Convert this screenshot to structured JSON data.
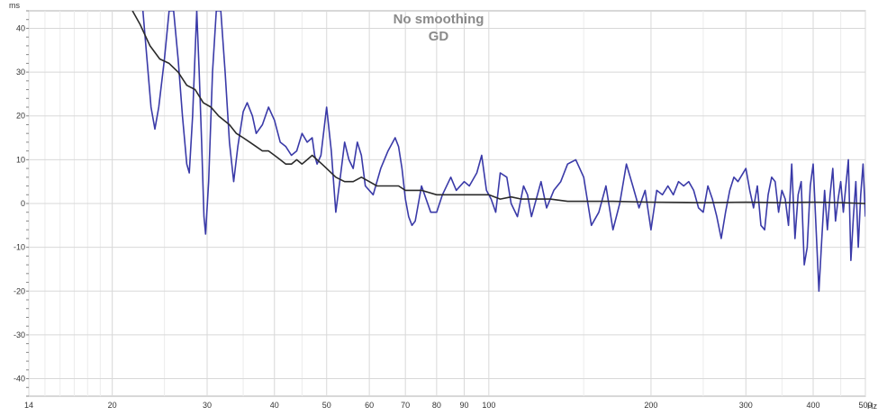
{
  "chart_data": {
    "type": "line",
    "title": "No smoothing",
    "subtitle": "GD",
    "ylabel": "ms",
    "xunit": "Hz",
    "xscale": "log",
    "xlim": [
      14,
      500
    ],
    "ylim": [
      -44,
      44
    ],
    "grid": true,
    "xticks": [
      14,
      20,
      30,
      40,
      50,
      60,
      70,
      80,
      90,
      100,
      200,
      300,
      400,
      500
    ],
    "xminorticks": [
      15,
      16,
      17,
      18,
      19,
      25,
      35,
      45,
      150,
      250,
      350,
      450
    ],
    "yticks": [
      -40,
      -30,
      -20,
      -10,
      0,
      10,
      20,
      30,
      40
    ],
    "colors": {
      "series_blue": "#3a3aa8",
      "series_dark": "#2a2a2a",
      "title": "#8a8a8a",
      "grid": "#d8d8d8"
    },
    "series": [
      {
        "points": [
          [
            22.8,
            44
          ],
          [
            23.2,
            33
          ],
          [
            23.6,
            22
          ],
          [
            24,
            17
          ],
          [
            24.4,
            22
          ],
          [
            25,
            33
          ],
          [
            25.5,
            44
          ],
          [
            26,
            44
          ],
          [
            26.5,
            33
          ],
          [
            27,
            20
          ],
          [
            27.5,
            9
          ],
          [
            27.8,
            7
          ],
          [
            28.2,
            20
          ],
          [
            28.7,
            44
          ],
          [
            29,
            30
          ],
          [
            29.3,
            14
          ],
          [
            29.6,
            -3
          ],
          [
            29.8,
            -7
          ],
          [
            30.2,
            5
          ],
          [
            30.7,
            30
          ],
          [
            31.2,
            44
          ],
          [
            31.8,
            44
          ],
          [
            32.4,
            30
          ],
          [
            33,
            14
          ],
          [
            33.6,
            5
          ],
          [
            34.2,
            13
          ],
          [
            35,
            21
          ],
          [
            35.6,
            23
          ],
          [
            36.4,
            20
          ],
          [
            37,
            16
          ],
          [
            38,
            18
          ],
          [
            39,
            22
          ],
          [
            40,
            19
          ],
          [
            41,
            14
          ],
          [
            42,
            13
          ],
          [
            43,
            11
          ],
          [
            44,
            12
          ],
          [
            45,
            16
          ],
          [
            46,
            14
          ],
          [
            47,
            15
          ],
          [
            47.5,
            11
          ],
          [
            48,
            9
          ],
          [
            48.8,
            11
          ],
          [
            50,
            22
          ],
          [
            51,
            12
          ],
          [
            52,
            -2
          ],
          [
            53,
            6
          ],
          [
            54,
            14
          ],
          [
            55,
            10
          ],
          [
            56,
            8
          ],
          [
            57,
            14
          ],
          [
            58,
            11
          ],
          [
            59,
            4
          ],
          [
            61,
            2
          ],
          [
            63,
            8
          ],
          [
            65,
            12
          ],
          [
            67,
            15
          ],
          [
            68,
            13
          ],
          [
            69,
            8
          ],
          [
            70,
            1
          ],
          [
            71,
            -3
          ],
          [
            72,
            -5
          ],
          [
            73,
            -4
          ],
          [
            75,
            4
          ],
          [
            76,
            2
          ],
          [
            78,
            -2
          ],
          [
            80,
            -2
          ],
          [
            82,
            2
          ],
          [
            85,
            6
          ],
          [
            87,
            3
          ],
          [
            90,
            5
          ],
          [
            92,
            4
          ],
          [
            95,
            7
          ],
          [
            97,
            11
          ],
          [
            99,
            3
          ],
          [
            101,
            1
          ],
          [
            103,
            -2
          ],
          [
            105,
            7
          ],
          [
            108,
            6
          ],
          [
            110,
            0
          ],
          [
            113,
            -3
          ],
          [
            116,
            4
          ],
          [
            118,
            2
          ],
          [
            120,
            -3
          ],
          [
            125,
            5
          ],
          [
            128,
            -1
          ],
          [
            132,
            3
          ],
          [
            136,
            5
          ],
          [
            140,
            9
          ],
          [
            145,
            10
          ],
          [
            150,
            6
          ],
          [
            155,
            -5
          ],
          [
            160,
            -2
          ],
          [
            165,
            4
          ],
          [
            170,
            -6
          ],
          [
            175,
            0
          ],
          [
            180,
            9
          ],
          [
            185,
            4
          ],
          [
            190,
            -1
          ],
          [
            195,
            3
          ],
          [
            200,
            -6
          ],
          [
            205,
            3
          ],
          [
            210,
            2
          ],
          [
            215,
            4
          ],
          [
            220,
            2
          ],
          [
            225,
            5
          ],
          [
            230,
            4
          ],
          [
            235,
            5
          ],
          [
            240,
            3
          ],
          [
            245,
            -1
          ],
          [
            250,
            -2
          ],
          [
            255,
            4
          ],
          [
            260,
            1
          ],
          [
            265,
            -3
          ],
          [
            270,
            -8
          ],
          [
            275,
            -2
          ],
          [
            280,
            3
          ],
          [
            285,
            6
          ],
          [
            290,
            5
          ],
          [
            300,
            8
          ],
          [
            305,
            3
          ],
          [
            310,
            -1
          ],
          [
            315,
            4
          ],
          [
            320,
            -5
          ],
          [
            325,
            -6
          ],
          [
            330,
            2
          ],
          [
            335,
            6
          ],
          [
            340,
            5
          ],
          [
            345,
            -2
          ],
          [
            350,
            3
          ],
          [
            355,
            1
          ],
          [
            360,
            -5
          ],
          [
            365,
            9
          ],
          [
            370,
            -8
          ],
          [
            375,
            2
          ],
          [
            380,
            5
          ],
          [
            385,
            -14
          ],
          [
            390,
            -10
          ],
          [
            395,
            4
          ],
          [
            400,
            9
          ],
          [
            405,
            -6
          ],
          [
            410,
            -20
          ],
          [
            415,
            -8
          ],
          [
            420,
            3
          ],
          [
            425,
            -6
          ],
          [
            430,
            2
          ],
          [
            435,
            8
          ],
          [
            440,
            -4
          ],
          [
            445,
            1
          ],
          [
            450,
            5
          ],
          [
            455,
            -2
          ],
          [
            460,
            4
          ],
          [
            465,
            10
          ],
          [
            470,
            -13
          ],
          [
            475,
            -3
          ],
          [
            480,
            5
          ],
          [
            485,
            -10
          ],
          [
            490,
            2
          ],
          [
            495,
            9
          ],
          [
            500,
            -3
          ]
        ]
      },
      {
        "points": [
          [
            21.8,
            44
          ],
          [
            22.5,
            41
          ],
          [
            23.5,
            36
          ],
          [
            24.5,
            33
          ],
          [
            25.5,
            32
          ],
          [
            26.5,
            30
          ],
          [
            27.5,
            27
          ],
          [
            28.5,
            26
          ],
          [
            29.5,
            23
          ],
          [
            30.5,
            22
          ],
          [
            31.5,
            20
          ],
          [
            33,
            18
          ],
          [
            34,
            16
          ],
          [
            35,
            15
          ],
          [
            36,
            14
          ],
          [
            37,
            13
          ],
          [
            38,
            12
          ],
          [
            39,
            12
          ],
          [
            40,
            11
          ],
          [
            41,
            10
          ],
          [
            42,
            9
          ],
          [
            43,
            9
          ],
          [
            44,
            10
          ],
          [
            45,
            9
          ],
          [
            46,
            10
          ],
          [
            47,
            11
          ],
          [
            48,
            10
          ],
          [
            49,
            9
          ],
          [
            50,
            8
          ],
          [
            52,
            6
          ],
          [
            54,
            5
          ],
          [
            56,
            5
          ],
          [
            58,
            6
          ],
          [
            60,
            5
          ],
          [
            62,
            4
          ],
          [
            65,
            4
          ],
          [
            68,
            4
          ],
          [
            70,
            3
          ],
          [
            75,
            3
          ],
          [
            80,
            2
          ],
          [
            85,
            2
          ],
          [
            90,
            2
          ],
          [
            95,
            2
          ],
          [
            100,
            2
          ],
          [
            105,
            1
          ],
          [
            110,
            1.5
          ],
          [
            115,
            1
          ],
          [
            120,
            1
          ],
          [
            130,
            1
          ],
          [
            140,
            0.5
          ],
          [
            150,
            0.5
          ],
          [
            170,
            0.5
          ],
          [
            200,
            0.3
          ],
          [
            250,
            0.2
          ],
          [
            300,
            0.3
          ],
          [
            350,
            0.2
          ],
          [
            400,
            0.3
          ],
          [
            450,
            0.2
          ],
          [
            500,
            0
          ]
        ]
      }
    ]
  }
}
